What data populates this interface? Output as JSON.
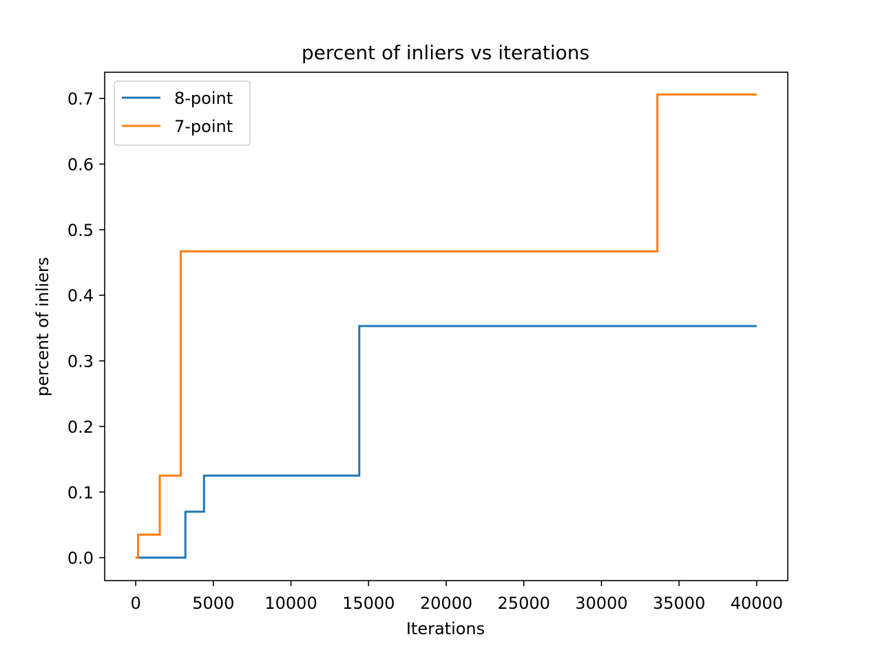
{
  "chart_data": {
    "type": "line",
    "drawstyle": "steps-post",
    "title": "percent of inliers vs iterations",
    "xlabel": "Iterations",
    "ylabel": "percent of inliers",
    "xlim": [
      -2000,
      42000
    ],
    "ylim": [
      -0.035,
      0.74
    ],
    "xticks": [
      0,
      5000,
      10000,
      15000,
      20000,
      25000,
      30000,
      35000,
      40000
    ],
    "xtick_labels": [
      "0",
      "5000",
      "10000",
      "15000",
      "20000",
      "25000",
      "30000",
      "35000",
      "40000"
    ],
    "yticks": [
      0.0,
      0.1,
      0.2,
      0.3,
      0.4,
      0.5,
      0.6,
      0.7
    ],
    "ytick_labels": [
      "0.0",
      "0.1",
      "0.2",
      "0.3",
      "0.4",
      "0.5",
      "0.6",
      "0.7"
    ],
    "grid": false,
    "legend_position": "top-left",
    "series": [
      {
        "name": "8-point",
        "color": "#1f77b4",
        "x": [
          0,
          3200,
          4400,
          14400,
          40000
        ],
        "y": [
          0.0,
          0.07,
          0.125,
          0.353,
          0.353
        ]
      },
      {
        "name": "7-point",
        "color": "#ff7f0e",
        "x": [
          0,
          150,
          1550,
          2900,
          33600,
          40000
        ],
        "y": [
          0.0,
          0.035,
          0.125,
          0.467,
          0.706,
          0.706
        ]
      }
    ]
  }
}
